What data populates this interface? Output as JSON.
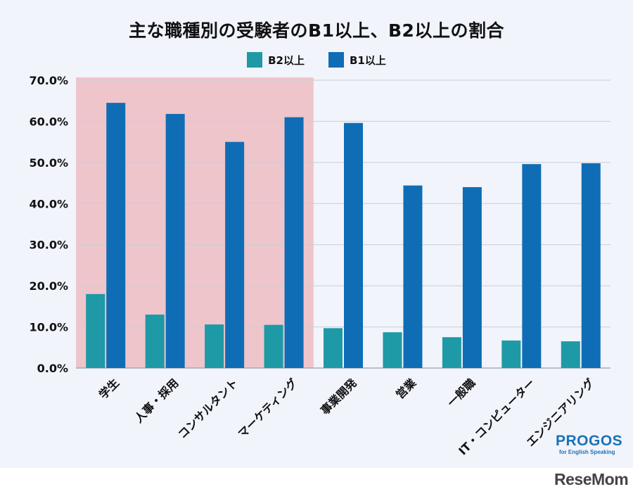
{
  "chart_data": {
    "type": "bar",
    "title": "主な職種別の受験者のB1以上、B2以上の割合",
    "categories": [
      "学生",
      "人事・採用",
      "コンサルタント",
      "マーケティング",
      "事業開発",
      "営業",
      "一般職",
      "IT・コンピューター",
      "エンジニアリング"
    ],
    "series": [
      {
        "name": "B2以上",
        "values": [
          18.0,
          13.0,
          10.6,
          10.5,
          9.7,
          8.7,
          7.5,
          6.7,
          6.5
        ],
        "color": "#1e9aa6"
      },
      {
        "name": "B1以上",
        "values": [
          64.5,
          61.8,
          55.0,
          61.0,
          59.6,
          44.4,
          44.0,
          49.6,
          49.8
        ],
        "color": "#0f6db5"
      }
    ],
    "ylim": [
      0,
      70
    ],
    "yticks": [
      "0.0%",
      "10.0%",
      "20.0%",
      "30.0%",
      "40.0%",
      "50.0%",
      "60.0%",
      "70.0%"
    ],
    "highlight_categories": [
      "学生",
      "人事・採用",
      "コンサルタント",
      "マーケティング"
    ],
    "highlight_color": "#eec5cb",
    "legend_position": "top-center",
    "grid": true
  },
  "logos": {
    "progos": "PROGOS",
    "progos_sub": "for English Speaking",
    "resemom": "ReseMom"
  }
}
